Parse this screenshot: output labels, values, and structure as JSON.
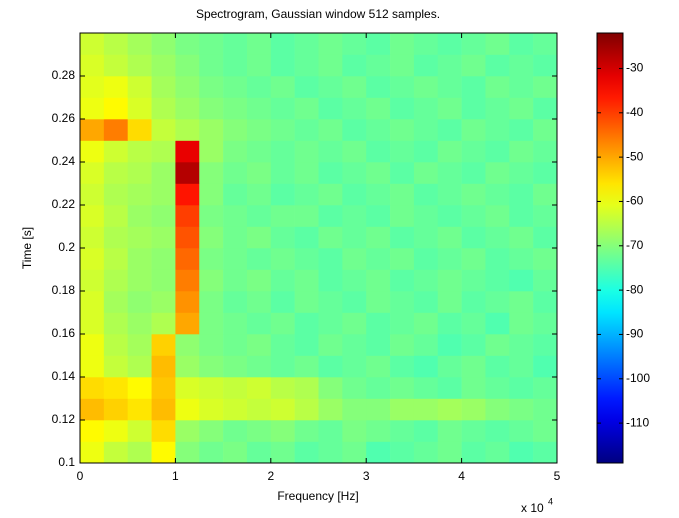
{
  "chart_data": {
    "type": "heatmap",
    "title": "Spectrogram, Gaussian window 512 samples.",
    "xlabel": "Frequency [Hz]",
    "ylabel": "Time [s]",
    "x_multiplier": "x 10",
    "x_multiplier_exponent": "4",
    "xlim": [
      0,
      50000
    ],
    "ylim": [
      0.1,
      0.3
    ],
    "xticks": [
      0,
      {
        "value": 10000,
        "label": "1"
      },
      {
        "value": 20000,
        "label": "2"
      },
      {
        "value": 30000,
        "label": "3"
      },
      {
        "value": 40000,
        "label": "4"
      },
      {
        "value": 50000,
        "label": "5"
      }
    ],
    "yticks": [
      0.1,
      0.12,
      0.14,
      0.16,
      0.18,
      0.2,
      0.22,
      0.24,
      0.26,
      0.28
    ],
    "clim": [
      -119,
      -22
    ],
    "cticks": [
      -110,
      -100,
      -90,
      -80,
      -70,
      -60,
      -50,
      -40,
      -30
    ],
    "colormap": "jet",
    "x_bins": [
      0,
      2500,
      5000,
      7500,
      10000,
      12500,
      15000,
      17500,
      20000,
      22500,
      25000,
      27500,
      30000,
      32500,
      35000,
      37500,
      40000,
      42500,
      45000,
      47500,
      50000
    ],
    "y_bins": [
      0.1,
      0.11,
      0.12,
      0.13,
      0.14,
      0.15,
      0.16,
      0.17,
      0.18,
      0.19,
      0.2,
      0.21,
      0.22,
      0.23,
      0.24,
      0.25,
      0.26,
      0.27,
      0.28,
      0.29,
      0.3
    ],
    "z": [
      [
        -60,
        -64,
        -66,
        -58,
        -70,
        -72,
        -71,
        -73,
        -72,
        -74,
        -73,
        -72,
        -75,
        -74,
        -73,
        -72,
        -74,
        -73,
        -75,
        -74
      ],
      [
        -58,
        -60,
        -63,
        -55,
        -68,
        -70,
        -72,
        -71,
        -70,
        -72,
        -73,
        -71,
        -72,
        -73,
        -74,
        -72,
        -73,
        -74,
        -73,
        -72
      ],
      [
        -52,
        -54,
        -56,
        -52,
        -60,
        -62,
        -63,
        -64,
        -63,
        -65,
        -68,
        -70,
        -70,
        -68,
        -68,
        -67,
        -68,
        -70,
        -71,
        -72
      ],
      [
        -55,
        -56,
        -58,
        -53,
        -62,
        -63,
        -64,
        -63,
        -65,
        -66,
        -70,
        -72,
        -73,
        -72,
        -73,
        -74,
        -72,
        -73,
        -74,
        -73
      ],
      [
        -60,
        -64,
        -66,
        -52,
        -68,
        -70,
        -71,
        -72,
        -73,
        -72,
        -74,
        -73,
        -72,
        -74,
        -75,
        -73,
        -72,
        -74,
        -73,
        -75
      ],
      [
        -60,
        -65,
        -67,
        -54,
        -69,
        -71,
        -72,
        -71,
        -73,
        -74,
        -72,
        -73,
        -74,
        -72,
        -73,
        -75,
        -74,
        -72,
        -73,
        -74
      ],
      [
        -62,
        -66,
        -68,
        -66,
        -50,
        -71,
        -72,
        -73,
        -72,
        -74,
        -73,
        -72,
        -74,
        -73,
        -72,
        -74,
        -73,
        -75,
        -72,
        -73
      ],
      [
        -62,
        -67,
        -69,
        -68,
        -48,
        -71,
        -73,
        -72,
        -74,
        -72,
        -73,
        -74,
        -72,
        -73,
        -74,
        -72,
        -74,
        -73,
        -72,
        -74
      ],
      [
        -63,
        -66,
        -68,
        -69,
        -46,
        -70,
        -72,
        -71,
        -73,
        -72,
        -74,
        -73,
        -72,
        -74,
        -73,
        -72,
        -73,
        -74,
        -75,
        -73
      ],
      [
        -62,
        -65,
        -68,
        -69,
        -44,
        -71,
        -72,
        -73,
        -72,
        -73,
        -74,
        -72,
        -73,
        -72,
        -74,
        -73,
        -72,
        -74,
        -73,
        -72
      ],
      [
        -63,
        -66,
        -67,
        -68,
        -42,
        -70,
        -72,
        -71,
        -73,
        -74,
        -72,
        -73,
        -72,
        -74,
        -73,
        -72,
        -74,
        -73,
        -72,
        -74
      ],
      [
        -62,
        -65,
        -68,
        -69,
        -40,
        -71,
        -72,
        -73,
        -72,
        -72,
        -74,
        -73,
        -74,
        -72,
        -73,
        -74,
        -73,
        -72,
        -74,
        -73
      ],
      [
        -63,
        -66,
        -67,
        -68,
        -36,
        -70,
        -73,
        -72,
        -74,
        -73,
        -72,
        -74,
        -73,
        -72,
        -74,
        -73,
        -72,
        -73,
        -74,
        -72
      ],
      [
        -62,
        -65,
        -66,
        -68,
        -27,
        -70,
        -72,
        -71,
        -73,
        -72,
        -74,
        -73,
        -72,
        -74,
        -72,
        -73,
        -74,
        -72,
        -73,
        -74
      ],
      [
        -60,
        -63,
        -65,
        -66,
        -32,
        -68,
        -71,
        -72,
        -73,
        -72,
        -73,
        -72,
        -74,
        -73,
        -74,
        -72,
        -73,
        -74,
        -72,
        -73
      ],
      [
        -50,
        -46,
        -55,
        -64,
        -66,
        -68,
        -70,
        -71,
        -72,
        -73,
        -72,
        -74,
        -73,
        -72,
        -73,
        -74,
        -72,
        -73,
        -74,
        -72
      ],
      [
        -60,
        -58,
        -62,
        -66,
        -68,
        -70,
        -71,
        -72,
        -73,
        -72,
        -74,
        -73,
        -72,
        -74,
        -73,
        -72,
        -74,
        -73,
        -72,
        -74
      ],
      [
        -61,
        -60,
        -63,
        -67,
        -69,
        -71,
        -72,
        -73,
        -72,
        -74,
        -73,
        -72,
        -74,
        -73,
        -72,
        -73,
        -74,
        -72,
        -73,
        -72
      ],
      [
        -62,
        -64,
        -66,
        -68,
        -70,
        -72,
        -73,
        -72,
        -74,
        -73,
        -72,
        -74,
        -73,
        -72,
        -74,
        -73,
        -72,
        -74,
        -73,
        -74
      ],
      [
        -63,
        -65,
        -67,
        -69,
        -71,
        -72,
        -73,
        -72,
        -74,
        -73,
        -72,
        -73,
        -74,
        -72,
        -73,
        -74,
        -73,
        -72,
        -74,
        -73
      ]
    ]
  }
}
